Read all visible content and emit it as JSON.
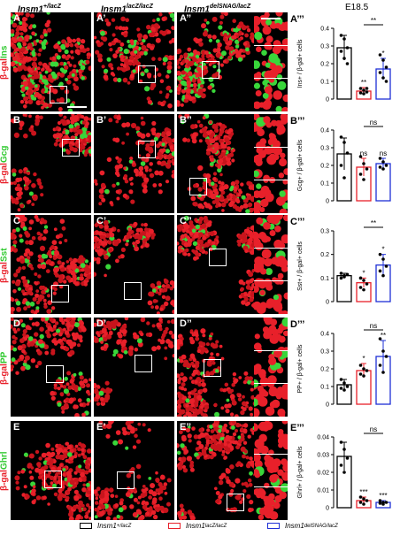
{
  "headers": {
    "col1_base": "Insm1",
    "col1_sup": "+/lacZ",
    "col2_base": "Insm1",
    "col2_sup": "lacZ/lacZ",
    "col3_base": "Insm1",
    "col3_sup": "delSNAG/lacZ",
    "stage": "E18.5"
  },
  "rows": [
    {
      "label_r": "β-gal",
      "label_g": "Ins",
      "p1": "A",
      "p2": "A’",
      "p3": "A’’",
      "chart": "A’’’"
    },
    {
      "label_r": "β-gal",
      "label_g": "Gcg",
      "p1": "B",
      "p2": "B’",
      "p3": "B’’",
      "chart": "B’’’"
    },
    {
      "label_r": "β-gal",
      "label_g": "Sst",
      "p1": "C",
      "p2": "C’",
      "p3": "C’’",
      "chart": "C’’’"
    },
    {
      "label_r": "β-gal",
      "label_g": "PP",
      "p1": "D",
      "p2": "D’",
      "p3": "D’’",
      "chart": "D’’’"
    },
    {
      "label_r": "β-gal",
      "label_g": "Ghrl",
      "p1": "E",
      "p2": "E’",
      "p3": "E’’",
      "chart": "E’’’"
    }
  ],
  "legend": [
    {
      "base": "Insm1",
      "sup": "+/lacZ",
      "color": "#000000"
    },
    {
      "base": "Insm1",
      "sup": "lacZ/lacZ",
      "color": "#e8202a"
    },
    {
      "base": "Insm1",
      "sup": "delSNAG/lacZ",
      "color": "#1e2fd6"
    }
  ],
  "chart_data": [
    {
      "type": "bar",
      "ylabel": "Ins+ / β-gal+ cells",
      "ylim": [
        0,
        0.4
      ],
      "yticks": [
        "0",
        "0.1",
        "0.2",
        "0.3",
        "0.4"
      ],
      "categories": [
        "Insm1+/lacZ",
        "Insm1lacZ/lacZ",
        "Insm1delSNAG/lacZ"
      ],
      "values": [
        0.29,
        0.045,
        0.17
      ],
      "errors": [
        0.07,
        0.02,
        0.06
      ],
      "points": [
        [
          0.36,
          0.34,
          0.29,
          0.27,
          0.23,
          0.2
        ],
        [
          0.06,
          0.05,
          0.04,
          0.035,
          0.03,
          0.06
        ],
        [
          0.25,
          0.22,
          0.18,
          0.15,
          0.12,
          0.1
        ]
      ],
      "sig_bar": "**",
      "stars": [
        "",
        "**",
        "*"
      ]
    },
    {
      "type": "bar",
      "ylabel": "Gcg+ / β-gal+ cells",
      "ylim": [
        0,
        0.4
      ],
      "yticks": [
        "0",
        "0.1",
        "0.2",
        "0.3",
        "0.4"
      ],
      "categories": [
        "Insm1+/lacZ",
        "Insm1lacZ/lacZ",
        "Insm1delSNAG/lacZ"
      ],
      "values": [
        0.265,
        0.19,
        0.21
      ],
      "errors": [
        0.09,
        0.05,
        0.03
      ],
      "points": [
        [
          0.36,
          0.33,
          0.27,
          0.2,
          0.13
        ],
        [
          0.25,
          0.21,
          0.18,
          0.15,
          0.12
        ],
        [
          0.24,
          0.22,
          0.2,
          0.19,
          0.18
        ]
      ],
      "sig_bar": "ns",
      "stars": [
        "",
        "ns",
        "ns"
      ]
    },
    {
      "type": "bar",
      "ylabel": "Sst+ / β-gal+ cells",
      "ylim": [
        0,
        0.3
      ],
      "yticks": [
        "0",
        "0.1",
        "0.2",
        "0.3"
      ],
      "categories": [
        "Insm1+/lacZ",
        "Insm1lacZ/lacZ",
        "Insm1delSNAG/lacZ"
      ],
      "values": [
        0.11,
        0.08,
        0.155
      ],
      "errors": [
        0.01,
        0.02,
        0.045
      ],
      "points": [
        [
          0.12,
          0.11,
          0.115,
          0.1,
          0.105
        ],
        [
          0.1,
          0.09,
          0.075,
          0.06,
          0.05
        ],
        [
          0.2,
          0.18,
          0.15,
          0.13,
          0.11
        ]
      ],
      "sig_bar": "**",
      "stars": [
        "",
        "*",
        "*"
      ]
    },
    {
      "type": "bar",
      "ylabel": "PP+ / β-gal+ cells",
      "ylim": [
        0,
        0.4
      ],
      "yticks": [
        "0",
        "0.1",
        "0.2",
        "0.3",
        "0.4"
      ],
      "categories": [
        "Insm1+/lacZ",
        "Insm1lacZ/lacZ",
        "Insm1delSNAG/lacZ"
      ],
      "values": [
        0.11,
        0.19,
        0.27
      ],
      "errors": [
        0.03,
        0.04,
        0.09
      ],
      "points": [
        [
          0.14,
          0.12,
          0.1,
          0.09,
          0.08
        ],
        [
          0.22,
          0.2,
          0.19,
          0.17,
          0.16
        ],
        [
          0.37,
          0.3,
          0.27,
          0.22,
          0.18
        ]
      ],
      "sig_bar": "ns",
      "stars": [
        "",
        "*",
        "**"
      ]
    },
    {
      "type": "bar",
      "ylabel": "Ghrl+ / β-gal+ cells",
      "ylim": [
        0,
        0.04
      ],
      "yticks": [
        "0",
        "0.01",
        "0.02",
        "0.03",
        "0.04"
      ],
      "categories": [
        "Insm1+/lacZ",
        "Insm1lacZ/lacZ",
        "Insm1delSNAG/lacZ"
      ],
      "values": [
        0.029,
        0.004,
        0.003
      ],
      "errors": [
        0.008,
        0.002,
        0.001
      ],
      "points": [
        [
          0.037,
          0.033,
          0.028,
          0.024,
          0.02
        ],
        [
          0.006,
          0.005,
          0.004,
          0.003,
          0.002
        ],
        [
          0.004,
          0.003,
          0.003,
          0.0025,
          0.002
        ]
      ],
      "sig_bar": "ns",
      "stars": [
        "",
        "***",
        "***"
      ]
    }
  ]
}
